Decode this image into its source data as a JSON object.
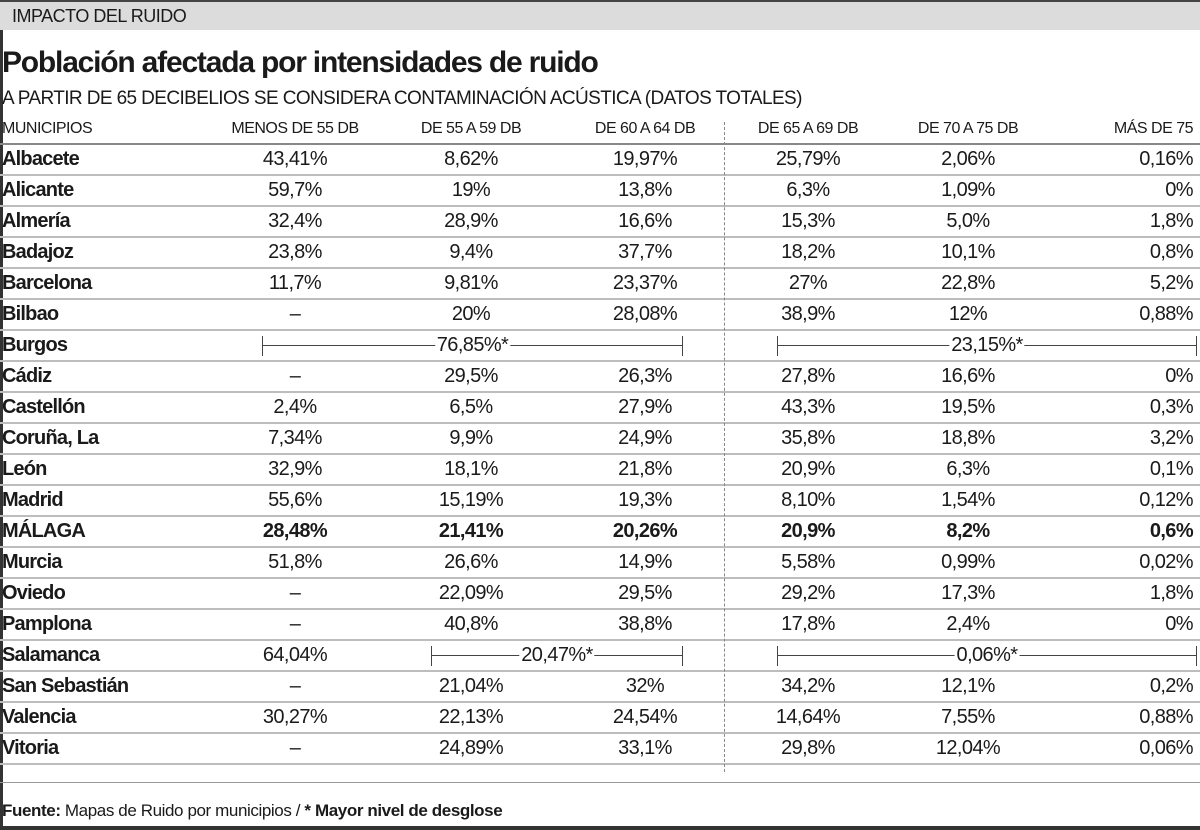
{
  "section_label": "IMPACTO DEL RUIDO",
  "title": "Población afectada por intensidades de ruido",
  "subtitle": "A PARTIR DE 65 DECIBELIOS SE CONSIDERA CONTAMINACIÓN ACÚSTICA (DATOS TOTALES)",
  "columns": [
    "MUNICIPIOS",
    "MENOS DE 55 DB",
    "DE 55 A 59 DB",
    "DE 60 A 64 DB",
    "DE 65 A 69 DB",
    "DE 70 A 75 DB",
    "MÁS DE 75"
  ],
  "rows": [
    {
      "name": "Albacete",
      "values": [
        "43,41%",
        "8,62%",
        "19,97%",
        "25,79%",
        "2,06%",
        "0,16%"
      ]
    },
    {
      "name": "Alicante",
      "values": [
        "59,7%",
        "19%",
        "13,8%",
        "6,3%",
        "1,09%",
        "0%"
      ]
    },
    {
      "name": "Almería",
      "values": [
        "32,4%",
        "28,9%",
        "16,6%",
        "15,3%",
        "5,0%",
        "1,8%"
      ]
    },
    {
      "name": "Badajoz",
      "values": [
        "23,8%",
        "9,4%",
        "37,7%",
        "18,2%",
        "10,1%",
        "0,8%"
      ]
    },
    {
      "name": "Barcelona",
      "values": [
        "11,7%",
        "9,81%",
        "23,37%",
        "27%",
        "22,8%",
        "5,2%"
      ]
    },
    {
      "name": "Bilbao",
      "values": [
        "–",
        "20%",
        "28,08%",
        "38,9%",
        "12%",
        "0,88%"
      ]
    },
    {
      "name": "Burgos",
      "values": [],
      "spans": [
        {
          "from": 1,
          "to": 3,
          "value": "76,85%*"
        },
        {
          "from": 4,
          "to": 6,
          "value": "23,15%*"
        }
      ]
    },
    {
      "name": "Cádiz",
      "values": [
        "–",
        "29,5%",
        "26,3%",
        "27,8%",
        "16,6%",
        "0%"
      ]
    },
    {
      "name": "Castellón",
      "values": [
        "2,4%",
        "6,5%",
        "27,9%",
        "43,3%",
        "19,5%",
        "0,3%"
      ]
    },
    {
      "name": "Coruña, La",
      "values": [
        "7,34%",
        "9,9%",
        "24,9%",
        "35,8%",
        "18,8%",
        "3,2%"
      ]
    },
    {
      "name": "León",
      "values": [
        "32,9%",
        "18,1%",
        "21,8%",
        "20,9%",
        "6,3%",
        "0,1%"
      ]
    },
    {
      "name": "Madrid",
      "values": [
        "55,6%",
        "15,19%",
        "19,3%",
        "8,10%",
        "1,54%",
        "0,12%"
      ]
    },
    {
      "name": "MÁLAGA",
      "bold": true,
      "values": [
        "28,48%",
        "21,41%",
        "20,26%",
        "20,9%",
        "8,2%",
        "0,6%"
      ]
    },
    {
      "name": "Murcia",
      "values": [
        "51,8%",
        "26,6%",
        "14,9%",
        "5,58%",
        "0,99%",
        "0,02%"
      ]
    },
    {
      "name": "Oviedo",
      "values": [
        "–",
        "22,09%",
        "29,5%",
        "29,2%",
        "17,3%",
        "1,8%"
      ]
    },
    {
      "name": "Pamplona",
      "values": [
        "–",
        "40,8%",
        "38,8%",
        "17,8%",
        "2,4%",
        "0%"
      ]
    },
    {
      "name": "Salamanca",
      "values": [
        "64,04%"
      ],
      "spans": [
        {
          "from": 2,
          "to": 3,
          "value": "20,47%*"
        },
        {
          "from": 4,
          "to": 6,
          "value": "0,06%*"
        }
      ]
    },
    {
      "name": "San Sebastián",
      "values": [
        "–",
        "21,04%",
        "32%",
        "34,2%",
        "12,1%",
        "0,2%"
      ]
    },
    {
      "name": "Valencia",
      "values": [
        "30,27%",
        "22,13%",
        "24,54%",
        "14,64%",
        "7,55%",
        "0,88%"
      ]
    },
    {
      "name": "Vitoria",
      "values": [
        "–",
        "24,89%",
        "33,1%",
        "29,8%",
        "12,04%",
        "0,06%"
      ]
    }
  ],
  "footer": {
    "source_label": "Fuente:",
    "source_text": " Mapas de Ruido por municipios / ",
    "note": "* Mayor nivel de desglose"
  }
}
